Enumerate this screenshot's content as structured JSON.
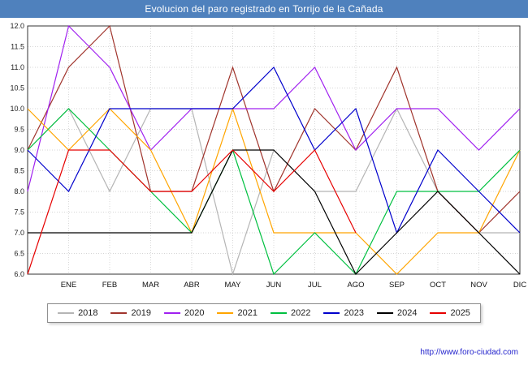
{
  "title": "Evolucion del paro registrado en Torrijo de la Cañada",
  "footer": {
    "url": "http://www.foro-ciudad.com"
  },
  "colors": {
    "title_bar": "#4f81bd",
    "grid": "#c8c8c8",
    "axis": "#333333"
  },
  "chart_data": {
    "type": "line",
    "title": "Evolucion del paro registrado en Torrijo de la Cañada",
    "x_labels": [
      "",
      "ENE",
      "FEB",
      "MAR",
      "ABR",
      "MAY",
      "JUN",
      "JUL",
      "AGO",
      "SEP",
      "OCT",
      "NOV",
      "DIC"
    ],
    "ylim": [
      6.0,
      12.0
    ],
    "y_tick_step": 0.5,
    "grid": true,
    "legend_position": "bottom",
    "series": [
      {
        "name": "2018",
        "color": "#b5b5b5",
        "values": [
          9,
          10,
          8,
          10,
          10,
          6,
          9,
          8,
          8,
          10,
          8,
          7,
          7
        ]
      },
      {
        "name": "2019",
        "color": "#a0342c",
        "values": [
          9,
          11,
          12,
          8,
          8,
          11,
          8,
          10,
          9,
          11,
          8,
          7,
          8
        ]
      },
      {
        "name": "2020",
        "color": "#a020f0",
        "values": [
          8,
          12,
          11,
          9,
          10,
          10,
          10,
          11,
          9,
          10,
          10,
          9,
          10
        ]
      },
      {
        "name": "2021",
        "color": "#ffa500",
        "values": [
          10,
          9,
          10,
          9,
          7,
          10,
          7,
          7,
          7,
          6,
          7,
          7,
          9
        ]
      },
      {
        "name": "2022",
        "color": "#00c040",
        "values": [
          9,
          10,
          9,
          8,
          7,
          9,
          6,
          7,
          6,
          8,
          8,
          8,
          9
        ]
      },
      {
        "name": "2023",
        "color": "#0000cc",
        "values": [
          9,
          8,
          10,
          10,
          10,
          10,
          11,
          9,
          10,
          7,
          9,
          8,
          7
        ]
      },
      {
        "name": "2024",
        "color": "#000000",
        "values": [
          7,
          7,
          7,
          7,
          7,
          9,
          9,
          8,
          6,
          7,
          8,
          7,
          6
        ]
      },
      {
        "name": "2025",
        "color": "#e60000",
        "values": [
          6,
          9,
          9,
          8,
          8,
          9,
          8,
          9,
          7
        ]
      }
    ]
  }
}
